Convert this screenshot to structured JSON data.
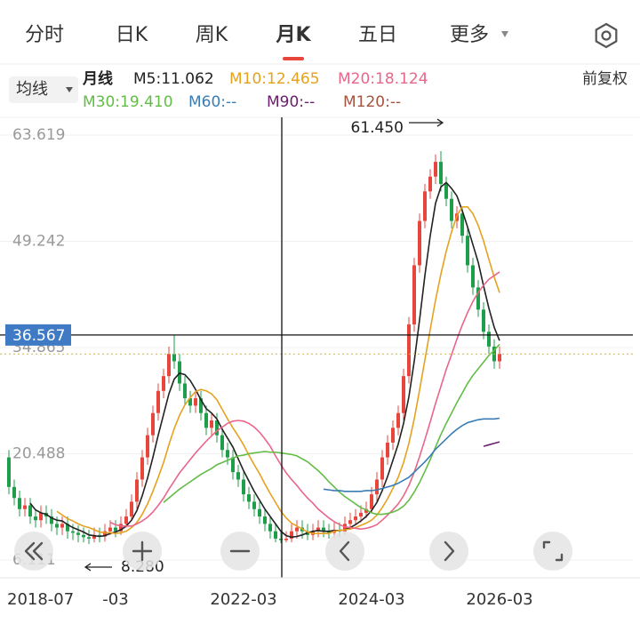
{
  "tabs": [
    "分时",
    "日K",
    "周K",
    "月K",
    "五日",
    "更多"
  ],
  "selected_tab": 3,
  "toolbar": {
    "ma_button": "均线",
    "period": "月线",
    "adjust": "前复权"
  },
  "chart_data": {
    "type": "candlestick",
    "categories": [
      "2018-07",
      null,
      null,
      null,
      null,
      null,
      null,
      null,
      null,
      null,
      null,
      null,
      null,
      null,
      null,
      null,
      null,
      null,
      null,
      null,
      "-03",
      null,
      null,
      null,
      null,
      null,
      null,
      null,
      null,
      null,
      null,
      null,
      null,
      null,
      null,
      null,
      null,
      null,
      null,
      null,
      null,
      null,
      null,
      null,
      "2022-03",
      null,
      null,
      null,
      null,
      null,
      null,
      null,
      null,
      null,
      null,
      null,
      null,
      null,
      null,
      null,
      null,
      null,
      null,
      null,
      null,
      null,
      null,
      null,
      "2024-03",
      null,
      null,
      null,
      null,
      null,
      null,
      null,
      null,
      null,
      null,
      null,
      null,
      null,
      null,
      null,
      null,
      null,
      null,
      null,
      null,
      null,
      null,
      null,
      "2026-03"
    ],
    "open": [
      20,
      16,
      14.5,
      13,
      13.5,
      12,
      11.5,
      12.5,
      12,
      11,
      10.5,
      11,
      10,
      9.8,
      9.5,
      9.2,
      9,
      9.5,
      9.3,
      10,
      10.5,
      10,
      11,
      12,
      14,
      17,
      20,
      23,
      26,
      29,
      31,
      34,
      33,
      30,
      28,
      27,
      28,
      26,
      24,
      25,
      23,
      21,
      20,
      18,
      17,
      15,
      14,
      13,
      12,
      11,
      10,
      9,
      8.8,
      9,
      10,
      10.5,
      10,
      9.5,
      10,
      10.5,
      10,
      9.8,
      10.2,
      10,
      11,
      11.5,
      12,
      12.5,
      13,
      15,
      17,
      20,
      22,
      24,
      26,
      31,
      38,
      46,
      52,
      56,
      58,
      60,
      57,
      55,
      52,
      53,
      50,
      46,
      43,
      40,
      37,
      35,
      33
    ],
    "high": [
      21,
      17,
      15.5,
      14.5,
      14.5,
      13,
      13.5,
      13.5,
      13,
      12,
      12,
      12,
      11,
      10.8,
      10.5,
      10.2,
      10.5,
      10.5,
      11,
      11.5,
      11.5,
      12,
      13,
      15,
      18,
      21,
      24,
      27,
      30,
      32,
      35,
      36.5,
      34,
      31,
      29,
      29,
      29,
      27,
      26,
      26,
      24,
      22,
      21,
      19,
      18,
      16,
      15,
      14,
      13,
      12,
      11,
      10,
      10,
      11,
      11.5,
      11.5,
      11,
      11,
      11.5,
      11.5,
      11,
      11.2,
      11.2,
      12,
      12.5,
      13,
      13.5,
      14,
      16,
      18,
      21,
      23,
      25,
      27,
      32,
      39,
      47,
      53,
      57,
      59,
      61,
      61.45,
      58,
      56,
      54,
      54,
      51,
      47,
      44,
      41,
      38,
      36,
      35
    ],
    "low": [
      15,
      13.5,
      12,
      12,
      11,
      10.5,
      10.5,
      11,
      10,
      9.5,
      9.5,
      9,
      8.8,
      8.5,
      8.5,
      8.28,
      8.5,
      8.5,
      8.6,
      9.5,
      9.2,
      9.5,
      10.5,
      11.5,
      13,
      16,
      19,
      22,
      25,
      28,
      30,
      32,
      29,
      27,
      26,
      26,
      25,
      23,
      23,
      22,
      20,
      19,
      17,
      16,
      14,
      13,
      12,
      11,
      10,
      9,
      8.5,
      8.4,
      8.5,
      8.5,
      9,
      9,
      8.8,
      8.8,
      9.2,
      9.2,
      9,
      9,
      9.2,
      9.5,
      10.2,
      10.8,
      11.2,
      11.8,
      12.5,
      14,
      16,
      19,
      21,
      23,
      25,
      30,
      37,
      45,
      51,
      55,
      57,
      56,
      54,
      51,
      51,
      49,
      45,
      42,
      39,
      36,
      34,
      32,
      32
    ],
    "close": [
      16,
      14.5,
      13,
      13.5,
      12,
      11.5,
      12.5,
      12,
      11,
      10.5,
      11,
      10,
      9.8,
      9.5,
      9.2,
      9,
      9.5,
      9.3,
      10,
      10.5,
      10,
      11,
      12,
      14,
      17,
      20,
      23,
      26,
      29,
      31,
      34,
      33,
      30,
      28,
      27,
      28,
      26,
      24,
      25,
      23,
      21,
      20,
      18,
      17,
      15,
      14,
      13,
      12,
      11,
      10,
      9,
      8.8,
      9,
      10,
      10.5,
      10,
      9.5,
      10,
      10.5,
      10,
      9.8,
      10.2,
      10,
      11,
      11.5,
      12,
      12.5,
      13,
      15,
      17,
      20,
      22,
      24,
      26,
      31,
      38,
      46,
      52,
      56,
      58,
      60,
      57,
      55,
      52,
      53,
      50,
      46,
      43,
      40,
      37,
      35,
      33,
      34
    ],
    "up_color": "#e8453c",
    "down_color": "#1e9e4a",
    "series": [
      {
        "name": "M5:11.062",
        "color": "#222222",
        "values": [
          null,
          null,
          null,
          null,
          13.8,
          12.9,
          12.5,
          12.3,
          11.8,
          11.5,
          11.4,
          10.9,
          10.5,
          10.2,
          9.9,
          9.5,
          9.4,
          9.3,
          9.4,
          9.7,
          9.9,
          10.2,
          10.7,
          11.5,
          12.8,
          14.8,
          17.2,
          20,
          23,
          25.8,
          28.6,
          30.6,
          31.4,
          31.2,
          30.4,
          29.2,
          27.8,
          26.6,
          26,
          25.2,
          23.8,
          22.6,
          21.4,
          19.8,
          18.2,
          16.8,
          15.4,
          14.2,
          13,
          12,
          11,
          10,
          9.4,
          9.2,
          9.3,
          9.5,
          9.8,
          10,
          10.1,
          10,
          10,
          10.1,
          10.1,
          10.2,
          10.5,
          10.9,
          11.4,
          12,
          12.8,
          13.9,
          15.5,
          17.4,
          19.6,
          21.8,
          24.6,
          28.2,
          33,
          38.6,
          44.6,
          50,
          54.4,
          56.6,
          57.2,
          56.4,
          55.4,
          53.4,
          51.2,
          48.8,
          46.4,
          43.2,
          40.2,
          37.6,
          35.8
        ]
      },
      {
        "name": "M10:12.465",
        "color": "#e5a21f",
        "values": [
          null,
          null,
          null,
          null,
          null,
          null,
          null,
          null,
          null,
          12.7,
          12.2,
          11.7,
          11.4,
          11,
          10.7,
          10.5,
          10.2,
          9.9,
          9.8,
          9.8,
          9.7,
          9.8,
          10,
          10.5,
          11.2,
          12.3,
          13.7,
          15.4,
          17.3,
          19.3,
          21.7,
          23.9,
          25.7,
          27.1,
          28.1,
          28.9,
          29.2,
          29,
          28.6,
          27.8,
          26.5,
          25.2,
          24,
          22.9,
          21.7,
          20.3,
          19,
          17.8,
          16.4,
          15.1,
          13.9,
          12.7,
          11.8,
          11.1,
          10.7,
          10.3,
          9.9,
          9.7,
          9.7,
          9.7,
          9.7,
          10,
          10.1,
          10.2,
          10.3,
          10.5,
          10.8,
          11.1,
          11.5,
          12.2,
          13.2,
          14.4,
          15.8,
          17.3,
          19.3,
          21.9,
          25.2,
          29.1,
          33.2,
          37.3,
          41.3,
          44.8,
          47.9,
          50.5,
          52.7,
          53.9,
          53.9,
          53,
          51.4,
          49.3,
          46.8,
          44.4,
          42.3
        ]
      },
      {
        "name": "M20:18.124",
        "color": "#e9668a",
        "values": [
          null,
          null,
          null,
          null,
          null,
          null,
          null,
          null,
          null,
          null,
          null,
          null,
          null,
          null,
          null,
          null,
          null,
          null,
          null,
          11.2,
          10.9,
          10.7,
          10.7,
          10.7,
          11,
          11.4,
          11.9,
          12.6,
          13.5,
          14.5,
          15.7,
          16.8,
          17.9,
          18.8,
          19.7,
          20.6,
          21.4,
          22.2,
          22.9,
          23.6,
          24.1,
          24.6,
          24.9,
          25,
          24.9,
          24.6,
          24.1,
          23.4,
          22.5,
          21.5,
          20.2,
          19,
          17.9,
          17,
          16.2,
          15.3,
          14.5,
          13.8,
          13,
          12.4,
          11.8,
          11.3,
          10.9,
          10.6,
          10.5,
          10.4,
          10.3,
          10.4,
          10.6,
          10.9,
          11.5,
          12.2,
          12.9,
          13.7,
          14.8,
          16.2,
          18,
          20.1,
          22.4,
          24.8,
          27.3,
          29.6,
          31.9,
          33.9,
          36,
          37.9,
          39.6,
          41.1,
          42.3,
          43.3,
          44.1,
          44.6,
          45.1
        ]
      },
      {
        "name": "M30:19.410",
        "color": "#62bd45",
        "values": [
          null,
          null,
          null,
          null,
          null,
          null,
          null,
          null,
          null,
          null,
          null,
          null,
          null,
          null,
          null,
          null,
          null,
          null,
          null,
          null,
          null,
          null,
          null,
          null,
          null,
          null,
          null,
          null,
          null,
          13.9,
          14.5,
          15.1,
          15.7,
          16.2,
          16.7,
          17.2,
          17.7,
          18.1,
          18.5,
          19,
          19.3,
          19.6,
          19.9,
          20.2,
          20.3,
          20.5,
          20.6,
          20.7,
          20.8,
          20.7,
          20.7,
          20.6,
          20.5,
          20.4,
          20.2,
          19.8,
          19.4,
          18.8,
          18.2,
          17.5,
          16.7,
          16,
          15.3,
          14.7,
          14.2,
          13.7,
          13.2,
          12.9,
          12.5,
          12.3,
          12.3,
          12.4,
          12.6,
          12.9,
          13.4,
          14.2,
          15.3,
          16.6,
          18.1,
          19.7,
          21.4,
          23.1,
          24.6,
          26,
          27.4,
          28.7,
          30,
          31.1,
          32,
          32.9,
          33.8,
          34.5,
          35.3
        ]
      },
      {
        "name": "M60:--",
        "color": "#3a7db4",
        "values": [
          null,
          null,
          null,
          null,
          null,
          null,
          null,
          null,
          null,
          null,
          null,
          null,
          null,
          null,
          null,
          null,
          null,
          null,
          null,
          null,
          null,
          null,
          null,
          null,
          null,
          null,
          null,
          null,
          null,
          null,
          null,
          null,
          null,
          null,
          null,
          null,
          null,
          null,
          null,
          null,
          null,
          null,
          null,
          null,
          null,
          null,
          null,
          null,
          null,
          null,
          null,
          null,
          null,
          null,
          null,
          null,
          null,
          null,
          null,
          15.7,
          15.6,
          15.5,
          15.5,
          15.4,
          15.4,
          15.4,
          15.4,
          15.5,
          15.5,
          15.6,
          15.8,
          16,
          16.2,
          16.5,
          16.9,
          17.3,
          18,
          18.7,
          19.4,
          20.2,
          21.1,
          21.8,
          22.5,
          23.2,
          23.8,
          24.3,
          24.7,
          24.9,
          25.1,
          25.2,
          25.2,
          25.2,
          25.3
        ]
      },
      {
        "name": "M90:--",
        "color": "#6a1f6c",
        "values": [
          null,
          null,
          null,
          null,
          null,
          null,
          null,
          null,
          null,
          null,
          null,
          null,
          null,
          null,
          null,
          null,
          null,
          null,
          null,
          null,
          null,
          null,
          null,
          null,
          null,
          null,
          null,
          null,
          null,
          null,
          null,
          null,
          null,
          null,
          null,
          null,
          null,
          null,
          null,
          null,
          null,
          null,
          null,
          null,
          null,
          null,
          null,
          null,
          null,
          null,
          null,
          null,
          null,
          null,
          null,
          null,
          null,
          null,
          null,
          null,
          null,
          null,
          null,
          null,
          null,
          null,
          null,
          null,
          null,
          null,
          null,
          null,
          null,
          null,
          null,
          null,
          null,
          null,
          null,
          null,
          null,
          null,
          null,
          null,
          null,
          null,
          null,
          null,
          null,
          21.5,
          21.7,
          21.9,
          22.1
        ]
      },
      {
        "name": "M120:--",
        "color": "#a3533f"
      }
    ],
    "ylim": [
      6.111,
      63.619
    ],
    "yticks": [
      63.619,
      49.242,
      34.865,
      20.488,
      6.111
    ],
    "grid": true,
    "crosshair": 36.567,
    "annotations": [
      {
        "value": 61.45,
        "label": "61.450"
      },
      {
        "value": 8.28,
        "label": "8.280"
      }
    ]
  }
}
